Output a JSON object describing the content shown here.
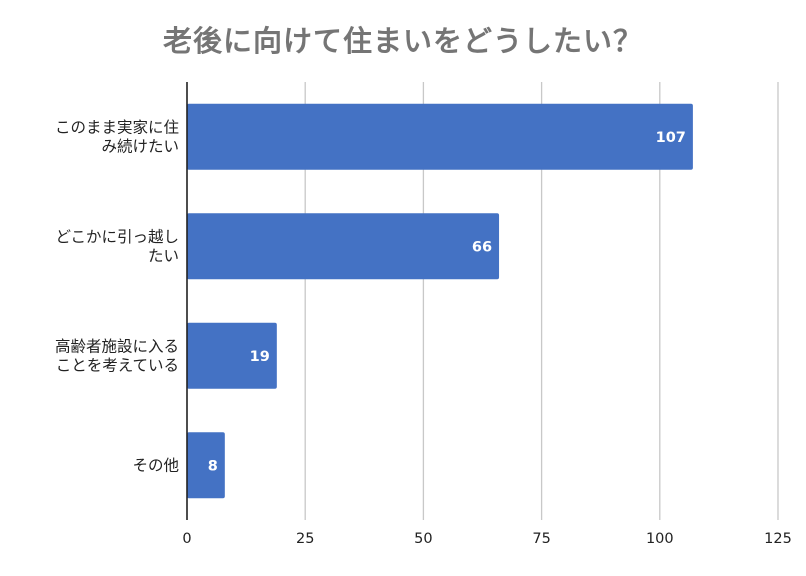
{
  "chart_data": {
    "type": "bar",
    "orientation": "horizontal",
    "title": "老後に向けて住まいをどうしたい？",
    "categories": [
      [
        "このまま実家に住",
        "み続けたい"
      ],
      [
        "どこかに引っ越し",
        "たい"
      ],
      [
        "高齢者施設に入る",
        "ことを考えている"
      ],
      [
        "その他"
      ]
    ],
    "values": [
      107,
      66,
      19,
      8
    ],
    "data_labels": [
      "107",
      "66",
      "19",
      "8"
    ],
    "xlim": [
      0,
      125
    ],
    "x_ticks": [
      0,
      25,
      50,
      75,
      100,
      125
    ],
    "x_tick_labels": [
      "0",
      "25",
      "50",
      "75",
      "100",
      "125"
    ],
    "grid": true,
    "legend": "none",
    "bar_color": "#4472c4",
    "grid_color": "#c8c8c8",
    "axis_color": "#222222",
    "title_color": "#757575"
  }
}
